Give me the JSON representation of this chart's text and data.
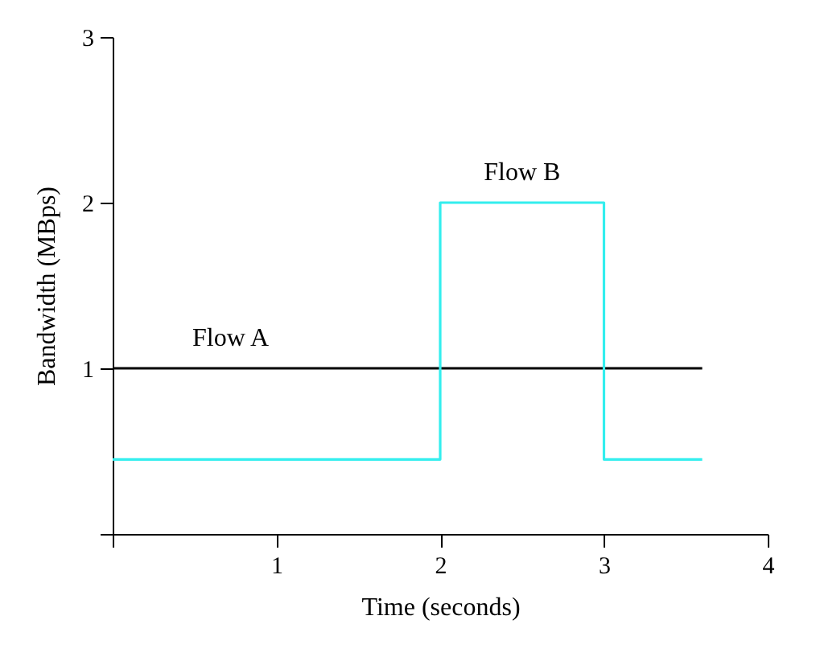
{
  "chart_data": {
    "type": "step",
    "xlabel": "Time (seconds)",
    "ylabel": "Bandwidth (MBps)",
    "xlim": [
      0,
      4
    ],
    "xticks": [
      {
        "value": 0,
        "label": null
      },
      1,
      2,
      3,
      4
    ],
    "ylim": [
      0,
      3
    ],
    "yticks": [
      {
        "value": 0,
        "label": null
      },
      1,
      2,
      3
    ],
    "grid": false,
    "legend": false,
    "series": [
      {
        "name": "Flow A",
        "color": "#000000",
        "x": [
          0,
          3.6
        ],
        "values": [
          1,
          1
        ]
      },
      {
        "name": "Flow B",
        "color": "#33eeee",
        "x": [
          0,
          2,
          3,
          3.6
        ],
        "values": [
          0.45,
          2,
          0.45,
          0.45
        ]
      }
    ]
  }
}
